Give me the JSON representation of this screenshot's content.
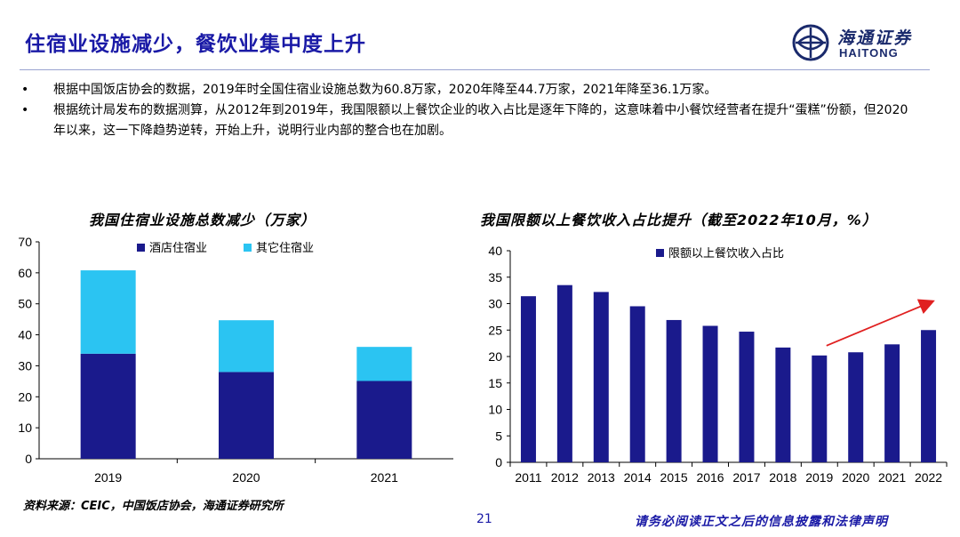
{
  "header": {
    "title": "住宿业设施减少，餐饮业集中度上升",
    "logo_cn": "海通证券",
    "logo_en": "HAITONG"
  },
  "bullets": [
    {
      "marker": "•",
      "text": "根据中国饭店协会的数据，2019年时全国住宿业设施总数为60.8万家，2020年降至44.7万家，2021年降至36.1万家。"
    },
    {
      "marker": "•",
      "text": "根据统计局发布的数据测算，从2012年到2019年，我国限额以上餐饮企业的收入占比是逐年下降的，这意味着中小餐饮经营者在提升“蛋糕”份额，但2020年以来，这一下降趋势逆转，开始上升，说明行业内部的整合也在加剧。"
    }
  ],
  "chart_data": [
    {
      "type": "bar",
      "stacked": true,
      "title": "我国住宿业设施总数减少（万家）",
      "categories": [
        "2019",
        "2020",
        "2021"
      ],
      "series": [
        {
          "name": "酒店住宿业",
          "values": [
            33.9,
            28.0,
            25.1
          ],
          "color": "#1a1a8c"
        },
        {
          "name": "其它住宿业",
          "values": [
            26.9,
            16.7,
            11.0
          ],
          "color": "#2bc4f2"
        }
      ],
      "ylim": [
        0,
        70
      ],
      "yticks": [
        "0",
        "10",
        "20",
        "30",
        "40",
        "50",
        "60",
        "70"
      ],
      "legend": "top"
    },
    {
      "type": "bar",
      "title": "我国限额以上餐饮收入占比提升（截至2022年10月，%）",
      "categories": [
        "2011",
        "2012",
        "2013",
        "2014",
        "2015",
        "2016",
        "2017",
        "2018",
        "2019",
        "2020",
        "2021",
        "2022"
      ],
      "series": [
        {
          "name": "限额以上餐饮收入占比",
          "values": [
            31.4,
            33.5,
            32.2,
            29.5,
            26.9,
            25.8,
            24.7,
            21.7,
            20.2,
            20.8,
            22.3,
            25.0
          ],
          "color": "#1a1a8c"
        }
      ],
      "ylim": [
        0,
        40
      ],
      "yticks": [
        "0",
        "5",
        "10",
        "15",
        "20",
        "25",
        "30",
        "35",
        "40"
      ],
      "annotation": "upward red arrow from 2019 to 2022",
      "arrow_color": "#e02020",
      "legend": "top"
    }
  ],
  "footer": {
    "source": "资料来源：CEIC，中国饭店协会，海通证券研究所",
    "page_number": "21",
    "disclaimer": "请务必阅读正文之后的信息披露和法律声明"
  }
}
